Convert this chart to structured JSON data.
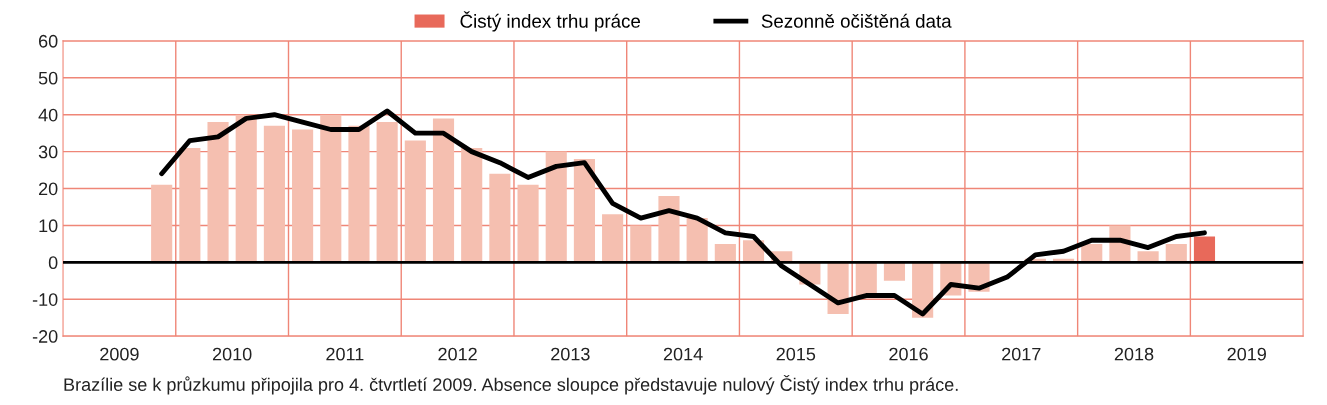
{
  "chart_data": {
    "type": "bar",
    "x": [
      2009.875,
      2010.125,
      2010.375,
      2010.625,
      2010.875,
      2011.125,
      2011.375,
      2011.625,
      2011.875,
      2012.125,
      2012.375,
      2012.625,
      2012.875,
      2013.125,
      2013.375,
      2013.625,
      2013.875,
      2014.125,
      2014.375,
      2014.625,
      2014.875,
      2015.125,
      2015.375,
      2015.625,
      2015.875,
      2016.125,
      2016.375,
      2016.625,
      2016.875,
      2017.125,
      2017.375,
      2017.625,
      2017.875,
      2018.125,
      2018.375,
      2018.625,
      2018.875,
      2019.125
    ],
    "series": [
      {
        "name": "Čistý index trhu práce",
        "color": "#e8695a",
        "values": [
          21,
          31,
          38,
          40,
          37,
          36,
          40,
          37,
          38,
          33,
          39,
          31,
          24,
          21,
          30,
          28,
          13,
          10,
          18,
          12,
          5,
          6,
          3,
          -6,
          -14,
          -9,
          -5,
          -15,
          -9,
          -8,
          0,
          1,
          1,
          5,
          10,
          3,
          5,
          7
        ],
        "colors": [
          "#f5bfb0",
          "#f5bfb0",
          "#f5bfb0",
          "#f5bfb0",
          "#f5bfb0",
          "#f5bfb0",
          "#f5bfb0",
          "#f5bfb0",
          "#f5bfb0",
          "#f5bfb0",
          "#f5bfb0",
          "#f5bfb0",
          "#f5bfb0",
          "#f5bfb0",
          "#f5bfb0",
          "#f5bfb0",
          "#f5bfb0",
          "#f5bfb0",
          "#f5bfb0",
          "#f5bfb0",
          "#f5bfb0",
          "#f5bfb0",
          "#f5bfb0",
          "#f5bfb0",
          "#f5bfb0",
          "#f5bfb0",
          "#f5bfb0",
          "#f5bfb0",
          "#f5bfb0",
          "#f5bfb0",
          "#f5bfb0",
          "#f5bfb0",
          "#f5bfb0",
          "#f5bfb0",
          "#f5bfb0",
          "#f5bfb0",
          "#f5bfb0",
          "#e8695a"
        ]
      },
      {
        "name": "Sezonně očištěná data",
        "type": "line",
        "color": "#000000",
        "values": [
          24,
          33,
          34,
          39,
          40,
          38,
          36,
          36,
          41,
          35,
          35,
          30,
          27,
          23,
          26,
          27,
          16,
          12,
          14,
          12,
          8,
          7,
          -1,
          -6,
          -11,
          -9,
          -9,
          -14,
          -6,
          -7,
          -4,
          2,
          3,
          6,
          6,
          4,
          7,
          8
        ]
      }
    ],
    "xlim": [
      2009,
      2020
    ],
    "xticks": [
      {
        "value": 2010,
        "label": null
      },
      {
        "value": 2011,
        "label": null
      },
      {
        "value": 2012,
        "label": null
      },
      {
        "value": 2013,
        "label": null
      },
      {
        "value": 2014,
        "label": null
      },
      {
        "value": 2015,
        "label": null
      },
      {
        "value": 2016,
        "label": null
      },
      {
        "value": 2017,
        "label": null
      },
      {
        "value": 2018,
        "label": null
      },
      {
        "value": 2019,
        "label": null
      },
      {
        "value": 2009.5,
        "label": "2009"
      },
      {
        "value": 2010.5,
        "label": "2010"
      },
      {
        "value": 2011.5,
        "label": "2011"
      },
      {
        "value": 2012.5,
        "label": "2012"
      },
      {
        "value": 2013.5,
        "label": "2013"
      },
      {
        "value": 2014.5,
        "label": "2014"
      },
      {
        "value": 2015.5,
        "label": "2015"
      },
      {
        "value": 2016.5,
        "label": "2016"
      },
      {
        "value": 2017.5,
        "label": "2017"
      },
      {
        "value": 2018.5,
        "label": "2018"
      },
      {
        "value": 2019.5,
        "label": "2019"
      }
    ],
    "ylim": [
      -20,
      60
    ],
    "yticks": [
      -20,
      -10,
      0,
      10,
      20,
      30,
      40,
      50,
      60
    ],
    "ref_lines": [
      {
        "axis": "y",
        "value": 0,
        "color": "#000000"
      }
    ],
    "grid": true,
    "legend": "top",
    "annotations": [
      "Brazílie se k průzkumu připojila pro 4. čtvrtletí 2009. Absence sloupce představuje nulový Čistý index trhu práce."
    ]
  }
}
